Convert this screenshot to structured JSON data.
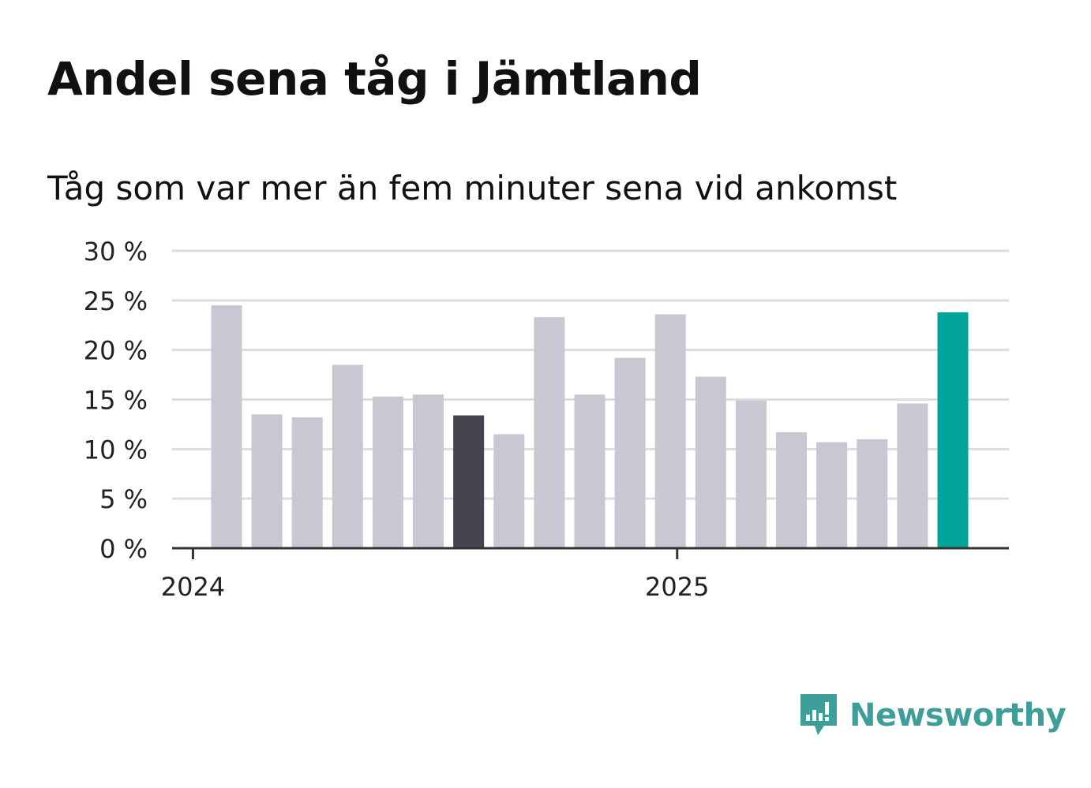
{
  "title": "Andel sena tåg i Jämtland",
  "subtitle": "Tåg som var mer än fem minuter sena vid ankomst",
  "brand": {
    "name": "Newsworthy",
    "color": "#3e9e9a",
    "icon": "newsworthy-chart-bubble-icon"
  },
  "colors": {
    "default_bar": "#c8c7d2",
    "highlight_dark": "#44434e",
    "highlight_latest": "#00a499",
    "grid": "#dddddd",
    "axis": "#333333"
  },
  "chart_data": {
    "type": "bar",
    "title": "Andel sena tåg i Jämtland",
    "subtitle": "Tåg som var mer än fem minuter sena vid ankomst",
    "categories": [
      "2024-01",
      "2024-02",
      "2024-03",
      "2024-04",
      "2024-05",
      "2024-06",
      "2024-07",
      "2024-08",
      "2024-09",
      "2024-10",
      "2024-11",
      "2024-12",
      "2025-01",
      "2025-02",
      "2025-03",
      "2025-04",
      "2025-05",
      "2025-06",
      "2025-07"
    ],
    "values": [
      24.5,
      13.5,
      13.2,
      18.5,
      15.3,
      15.5,
      13.4,
      11.5,
      23.3,
      15.5,
      19.2,
      23.6,
      17.3,
      14.9,
      11.7,
      10.7,
      11.0,
      14.6,
      23.8
    ],
    "highlight": {
      "2024-07": "dark",
      "2025-07": "latest"
    },
    "y_ticks": [
      0,
      5,
      10,
      15,
      20,
      25,
      30
    ],
    "y_tick_labels": [
      "0 %",
      "5 %",
      "10 %",
      "15 %",
      "20 %",
      "25 %",
      "30 %"
    ],
    "x_tick_labels": [
      {
        "at": "2024-01",
        "label": "2024"
      },
      {
        "at": "2025-01",
        "label": "2025"
      }
    ],
    "ylim": [
      0,
      30
    ],
    "unit": "%",
    "grid": true,
    "legend": "none"
  }
}
